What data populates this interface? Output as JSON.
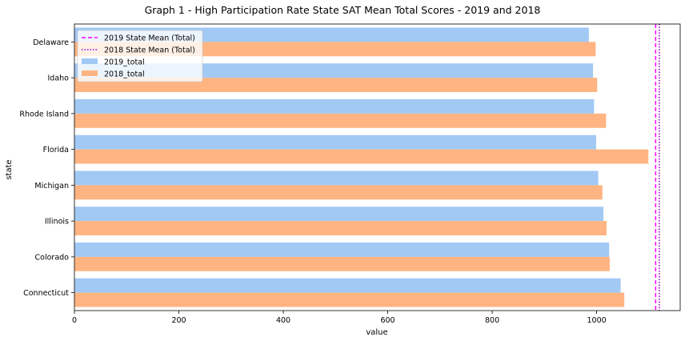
{
  "chart_data": {
    "type": "bar",
    "orientation": "horizontal",
    "title": "Graph 1 - High Participation Rate State SAT Mean Total Scores - 2019 and 2018",
    "xlabel": "value",
    "ylabel": "state",
    "xlim": [
      0,
      1160
    ],
    "xticks": [
      0,
      200,
      400,
      600,
      800,
      1000
    ],
    "grid": false,
    "legend_position": "top-left",
    "categories": [
      "Delaware",
      "Idaho",
      "Rhode Island",
      "Florida",
      "Michigan",
      "Illinois",
      "Colorado",
      "Connecticut"
    ],
    "series": [
      {
        "name": "2019_total",
        "color": "#a1c9f4",
        "values": [
          985,
          993,
          995,
          999,
          1003,
          1013,
          1024,
          1046
        ]
      },
      {
        "name": "2018_total",
        "color": "#ffb482",
        "values": [
          998,
          1001,
          1018,
          1099,
          1011,
          1019,
          1025,
          1053
        ]
      }
    ],
    "reference_lines": [
      {
        "name": "2019 State Mean (Total)",
        "value": 1113,
        "color": "#ff00ff",
        "style": "dashed"
      },
      {
        "name": "2018 State Mean (Total)",
        "value": 1120,
        "color": "#9400d3",
        "style": "dotted"
      }
    ]
  }
}
